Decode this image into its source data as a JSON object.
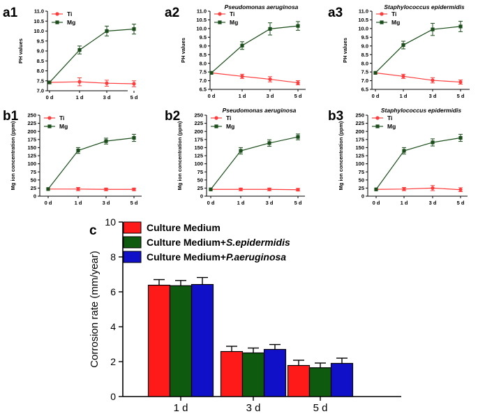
{
  "colors": {
    "ti": "#ff3b3b",
    "mg": "#1a4d1a",
    "bar_red": "#ff1a1a",
    "bar_green": "#0e5a0e",
    "bar_blue": "#1010c8"
  },
  "chart_data": [
    {
      "panel": "a1",
      "type": "line",
      "title": "",
      "ylabel": "PH values",
      "ylim": [
        7.0,
        11.0
      ],
      "yticks": [
        7.0,
        7.5,
        8.0,
        8.5,
        9.0,
        9.5,
        10.0,
        10.5,
        11.0
      ],
      "yticklabels": [
        "7.0",
        "7.5",
        "8.0",
        "8.5",
        "9.0",
        "9.5",
        "10.0",
        "10.5",
        "11.0"
      ],
      "categories": [
        "0 d",
        "1 d",
        "3 d",
        "5 d"
      ],
      "series": [
        {
          "name": "Ti",
          "values": [
            7.42,
            7.45,
            7.38,
            7.35
          ],
          "errors": [
            0.0,
            0.2,
            0.15,
            0.15
          ]
        },
        {
          "name": "Mg",
          "values": [
            7.42,
            9.05,
            10.0,
            10.1
          ],
          "errors": [
            0.0,
            0.2,
            0.25,
            0.25
          ]
        }
      ]
    },
    {
      "panel": "a2",
      "type": "line",
      "title": "Pseudomonas aeruginosa",
      "ylabel": "PH values",
      "ylim": [
        6.5,
        11.0
      ],
      "yticks": [
        6.5,
        7.0,
        7.5,
        8.0,
        8.5,
        9.0,
        9.5,
        10.0,
        10.5,
        11.0
      ],
      "yticklabels": [
        "6.5",
        "7.0",
        "7.5",
        "8.0",
        "8.5",
        "9.0",
        "9.5",
        "10.0",
        "10.5",
        "11.0"
      ],
      "categories": [
        "0 d",
        "1 d",
        "3 d",
        "5 d"
      ],
      "series": [
        {
          "name": "Ti",
          "values": [
            7.45,
            7.25,
            7.08,
            6.88
          ],
          "errors": [
            0.0,
            0.12,
            0.15,
            0.12
          ]
        },
        {
          "name": "Mg",
          "values": [
            7.45,
            9.02,
            9.98,
            10.15
          ],
          "errors": [
            0.0,
            0.22,
            0.35,
            0.25
          ]
        }
      ]
    },
    {
      "panel": "a3",
      "type": "line",
      "title": "Staphylococcus epidermidis",
      "ylabel": "PH values",
      "ylim": [
        6.5,
        11.0
      ],
      "yticks": [
        6.5,
        7.0,
        7.5,
        8.0,
        8.5,
        9.0,
        9.5,
        10.0,
        10.5,
        11.0
      ],
      "yticklabels": [
        "6.5",
        "7.0",
        "7.5",
        "8.0",
        "8.5",
        "9.0",
        "9.5",
        "10.0",
        "10.5",
        "11.0"
      ],
      "categories": [
        "0 d",
        "1 d",
        "3 d",
        "5 d"
      ],
      "series": [
        {
          "name": "Ti",
          "values": [
            7.45,
            7.25,
            7.02,
            6.92
          ],
          "errors": [
            0.0,
            0.12,
            0.15,
            0.12
          ]
        },
        {
          "name": "Mg",
          "values": [
            7.45,
            9.05,
            9.95,
            10.12
          ],
          "errors": [
            0.0,
            0.22,
            0.35,
            0.3
          ]
        }
      ]
    },
    {
      "panel": "b1",
      "type": "line",
      "title": "",
      "ylabel": "Mg ion concentration (ppm)",
      "ylim": [
        0,
        250
      ],
      "yticks": [
        0,
        25,
        50,
        75,
        100,
        125,
        150,
        175,
        200,
        225,
        250
      ],
      "yticklabels": [
        "0",
        "25",
        "50",
        "75",
        "100",
        "125",
        "150",
        "175",
        "200",
        "225",
        "250"
      ],
      "categories": [
        "0 d",
        "1 d",
        "3 d",
        "5 d"
      ],
      "series": [
        {
          "name": "Ti",
          "values": [
            22,
            22,
            21,
            21
          ],
          "errors": [
            0,
            5,
            4,
            4
          ]
        },
        {
          "name": "Mg",
          "values": [
            22,
            141,
            170,
            180
          ],
          "errors": [
            0,
            9,
            9,
            11
          ]
        }
      ]
    },
    {
      "panel": "b2",
      "type": "line",
      "title": "Pseudomonas aeruginosa",
      "ylabel": "Mg ion concentration (ppm)",
      "ylim": [
        0,
        250
      ],
      "yticks": [
        0,
        25,
        50,
        75,
        100,
        125,
        150,
        175,
        200,
        225,
        250
      ],
      "yticklabels": [
        "0",
        "25",
        "50",
        "75",
        "100",
        "125",
        "150",
        "175",
        "200",
        "225",
        "250"
      ],
      "categories": [
        "0 d",
        "1 d",
        "3 d",
        "5 d"
      ],
      "series": [
        {
          "name": "Ti",
          "values": [
            21,
            21,
            21,
            20
          ],
          "errors": [
            0,
            4,
            4,
            4
          ]
        },
        {
          "name": "Mg",
          "values": [
            21,
            140,
            164,
            183
          ],
          "errors": [
            0,
            10,
            10,
            9
          ]
        }
      ]
    },
    {
      "panel": "b3",
      "type": "line",
      "title": "Staphylococcus epidermidis",
      "ylabel": "Mg ion concentration (ppm)",
      "ylim": [
        0,
        250
      ],
      "yticks": [
        0,
        25,
        50,
        75,
        100,
        125,
        150,
        175,
        200,
        225,
        250
      ],
      "yticklabels": [
        "0",
        "25",
        "50",
        "75",
        "100",
        "125",
        "150",
        "175",
        "200",
        "225",
        "250"
      ],
      "categories": [
        "0 d",
        "1 d",
        "3 d",
        "5 d"
      ],
      "series": [
        {
          "name": "Ti",
          "values": [
            21,
            22,
            25,
            20
          ],
          "errors": [
            0,
            5,
            8,
            6
          ]
        },
        {
          "name": "Mg",
          "values": [
            21,
            140,
            166,
            180
          ],
          "errors": [
            0,
            10,
            11,
            11
          ]
        }
      ]
    },
    {
      "panel": "c",
      "type": "bar",
      "title": "",
      "ylabel": "Corrosion rate (mm/year)",
      "ylim": [
        0,
        10
      ],
      "yticks": [
        0,
        2,
        4,
        6,
        8,
        10
      ],
      "yticklabels": [
        "0",
        "2",
        "4",
        "6",
        "8",
        "10"
      ],
      "categories": [
        "1 d",
        "3 d",
        "5 d"
      ],
      "series": [
        {
          "name": "Culture Medium",
          "values": [
            6.38,
            2.58,
            1.78
          ],
          "errors": [
            0.32,
            0.3,
            0.3
          ]
        },
        {
          "name": "Culture Medium+S.epidermidis",
          "values": [
            6.35,
            2.5,
            1.65
          ],
          "errors": [
            0.3,
            0.28,
            0.27
          ]
        },
        {
          "name": "Culture Medium+P.aeruginosa",
          "values": [
            6.42,
            2.7,
            1.9
          ],
          "errors": [
            0.4,
            0.28,
            0.3
          ]
        }
      ],
      "legend": [
        {
          "plain": "Culture Medium",
          "italic": ""
        },
        {
          "plain": "Culture Medium+",
          "italic": "S.epidermidis"
        },
        {
          "plain": "Culture Medium+",
          "italic": "P.aeruginosa"
        }
      ]
    }
  ]
}
